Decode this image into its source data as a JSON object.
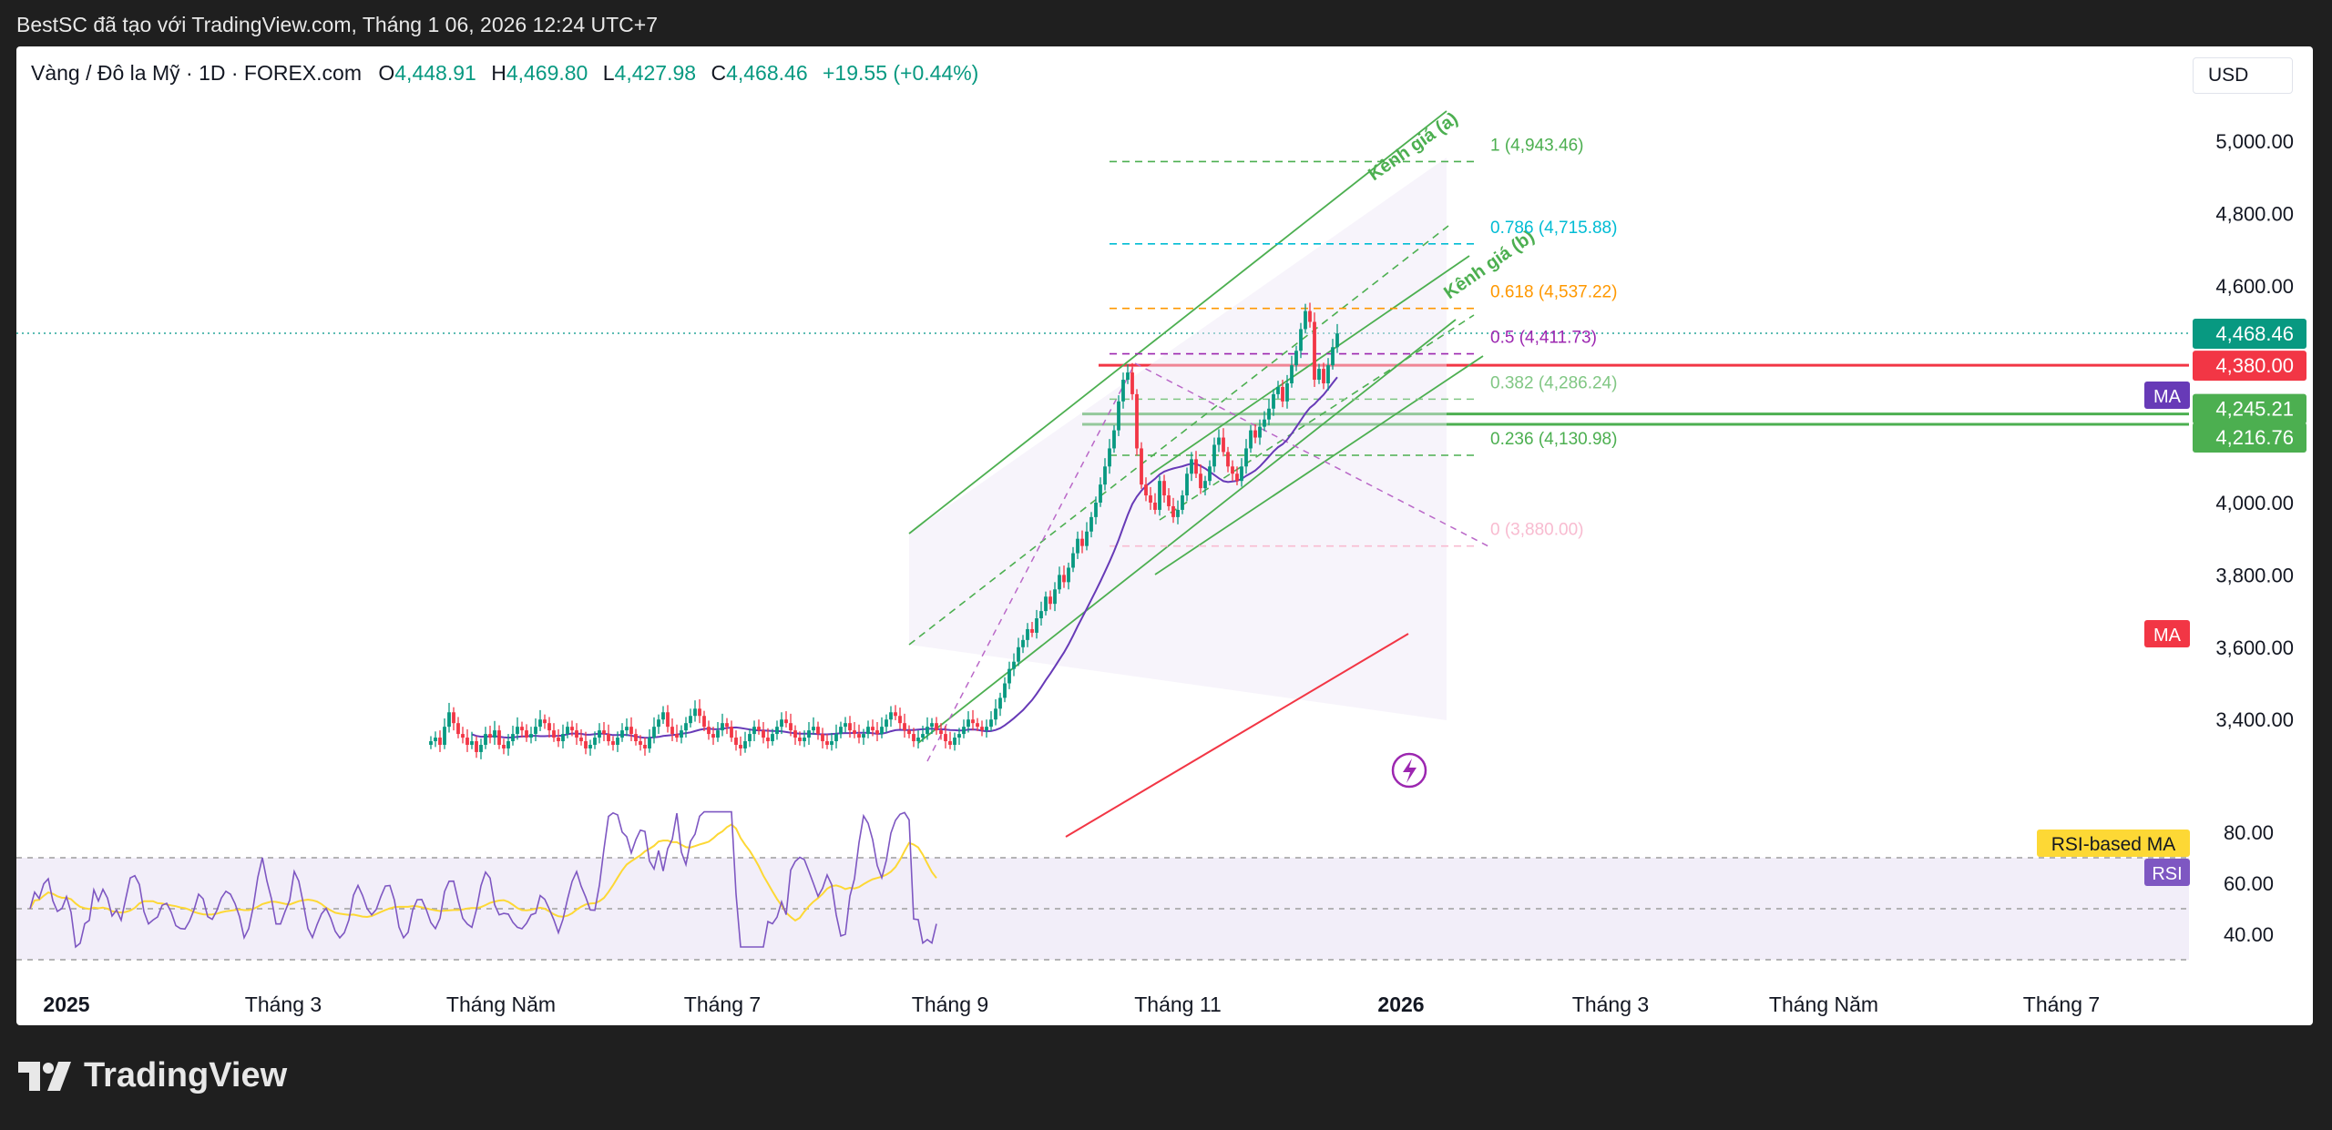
{
  "header": {
    "text": "BestSC đã tạo với TradingView.com, Tháng 1 06, 2026 12:24 UTC+7"
  },
  "symbol": {
    "name": "Vàng / Đô la Mỹ · 1D · FOREX.com",
    "o_label": "O",
    "o": "4,448.91",
    "h_label": "H",
    "h": "4,469.80",
    "l_label": "L",
    "l": "4,427.98",
    "c_label": "C",
    "c": "4,468.46",
    "change": "+19.55 (+0.44%)"
  },
  "currency": "USD",
  "price_axis": {
    "ticks": [
      "5,000.00",
      "4,800.00",
      "4,600.00",
      "4,000.00",
      "3,800.00",
      "3,600.00",
      "3,400.00"
    ],
    "tick_values": [
      5000,
      4800,
      4600,
      4000,
      3800,
      3600,
      3400
    ]
  },
  "price_labels": [
    {
      "text": "4,468.46",
      "value": 4468.46,
      "color": "#089981"
    },
    {
      "text": "4,380.00",
      "value": 4380.0,
      "color": "#f23645"
    },
    {
      "text": "4,245.21",
      "value": 4245.21,
      "color": "#4caf50"
    },
    {
      "text": "4,216.76",
      "value": 4216.76,
      "color": "#4caf50"
    }
  ],
  "ma_tags": [
    {
      "text": "MA",
      "color": "#673ab7"
    },
    {
      "text": "MA",
      "color": "#f23645"
    }
  ],
  "fib_levels": [
    {
      "text": "1 (4,943.46)",
      "value": 4943.46,
      "color": "#4caf50"
    },
    {
      "text": "0.786 (4,715.88)",
      "value": 4715.88,
      "color": "#00bcd4"
    },
    {
      "text": "0.618 (4,537.22)",
      "value": 4537.22,
      "color": "#ff9800"
    },
    {
      "text": "0.5 (4,411.73)",
      "value": 4411.73,
      "color": "#9c27b0"
    },
    {
      "text": "0.382 (4,286.24)",
      "value": 4286.24,
      "color": "#81c784"
    },
    {
      "text": "0.236 (4,130.98)",
      "value": 4130.98,
      "color": "#4caf50"
    },
    {
      "text": "0 (3,880.00)",
      "value": 3880.0,
      "color": "#f8bbd0"
    }
  ],
  "channel_labels": {
    "a": "Kênh giá (a)",
    "b": "Kênh giá (b)"
  },
  "rsi": {
    "ticks": [
      "80.00",
      "60.00",
      "40.00"
    ],
    "tick_values": [
      80,
      60,
      40
    ],
    "ma_label": "RSI-based MA",
    "rsi_label": "RSI"
  },
  "time_axis": [
    "2025",
    "Tháng 3",
    "Tháng Năm",
    "Tháng 7",
    "Tháng 9",
    "Tháng 11",
    "2026",
    "Tháng 3",
    "Tháng Năm",
    "Tháng 7"
  ],
  "branding": {
    "logo_text": "TradingView"
  },
  "colors": {
    "up": "#089981",
    "down": "#f23645",
    "ma_fast": "#673ab7",
    "ma_slow": "#f23645",
    "rsi": "#7e57c2",
    "rsi_ma": "#fdd835",
    "channel": "#4caf50"
  },
  "chart_data": {
    "type": "candlestick",
    "symbol": "XAUUSD",
    "timeframe": "1D",
    "ylim": [
      3200,
      5100
    ],
    "rsi_ylim": [
      20,
      90
    ],
    "ohlc": {
      "open": 4448.91,
      "high": 4469.8,
      "low": 4427.98,
      "close": 4468.46
    },
    "close_series": [
      3340,
      3350,
      3330,
      3380,
      3420,
      3390,
      3360,
      3350,
      3330,
      3340,
      3310,
      3330,
      3360,
      3350,
      3370,
      3330,
      3320,
      3340,
      3360,
      3380,
      3370,
      3350,
      3360,
      3380,
      3400,
      3390,
      3370,
      3350,
      3340,
      3360,
      3380,
      3370,
      3350,
      3340,
      3320,
      3330,
      3350,
      3370,
      3360,
      3340,
      3330,
      3350,
      3370,
      3380,
      3360,
      3340,
      3330,
      3320,
      3350,
      3380,
      3400,
      3420,
      3380,
      3360,
      3350,
      3370,
      3390,
      3410,
      3430,
      3410,
      3380,
      3360,
      3350,
      3370,
      3390,
      3380,
      3350,
      3330,
      3320,
      3340,
      3360,
      3380,
      3370,
      3350,
      3340,
      3360,
      3380,
      3400,
      3390,
      3370,
      3350,
      3340,
      3350,
      3370,
      3380,
      3360,
      3340,
      3330,
      3340,
      3360,
      3380,
      3390,
      3370,
      3360,
      3350,
      3360,
      3380,
      3370,
      3360,
      3380,
      3400,
      3420,
      3410,
      3390,
      3370,
      3360,
      3340,
      3350,
      3360,
      3380,
      3390,
      3370,
      3360,
      3340,
      3330,
      3350,
      3360,
      3380,
      3400,
      3390,
      3380,
      3370,
      3380,
      3400,
      3430,
      3460,
      3500,
      3540,
      3560,
      3600,
      3620,
      3650,
      3640,
      3680,
      3700,
      3740,
      3720,
      3760,
      3800,
      3780,
      3820,
      3860,
      3900,
      3880,
      3920,
      3960,
      4000,
      4050,
      4100,
      4150,
      4200,
      4280,
      4340,
      4360,
      4300,
      4150,
      4050,
      4020,
      4000,
      3980,
      4060,
      4020,
      3990,
      3960,
      3980,
      4020,
      4080,
      4120,
      4080,
      4040,
      4060,
      4100,
      4160,
      4180,
      4140,
      4100,
      4080,
      4060,
      4100,
      4150,
      4200,
      4180,
      4210,
      4230,
      4260,
      4300,
      4320,
      4280,
      4330,
      4380,
      4420,
      4480,
      4530,
      4500,
      4340,
      4370,
      4330,
      4380,
      4430,
      4468
    ]
  }
}
